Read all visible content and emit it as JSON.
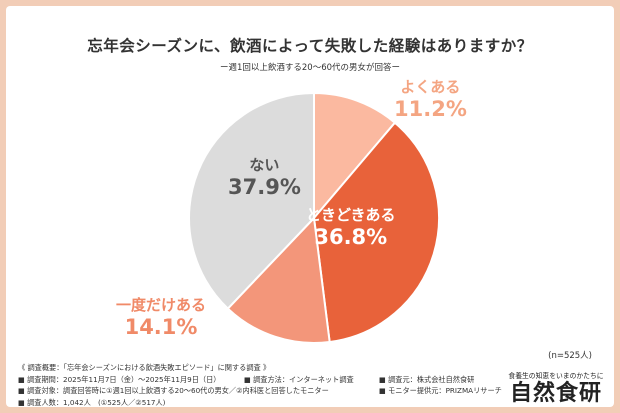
{
  "chart_data": {
    "type": "pie",
    "title": "忘年会シーズンに、飲酒によって失敗した経験はありますか？",
    "subtitle": "ー週1回以上飲酒する20～60代の男女が回答ー",
    "slices": [
      {
        "label": "よくある",
        "value": 11.2,
        "value_text": "11.2%",
        "color": "#fbb9a0",
        "text_color": "#f4a582"
      },
      {
        "label": "ときどきある",
        "value": 36.8,
        "value_text": "36.8%",
        "color": "#e8623a",
        "text_color": "#ffffff"
      },
      {
        "label": "一度だけある",
        "value": 14.1,
        "value_text": "14.1%",
        "color": "#f3967a",
        "text_color": "#f08a68"
      },
      {
        "label": "ない",
        "value": 37.9,
        "value_text": "37.9%",
        "color": "#dcdcdc",
        "text_color": "#555555"
      }
    ],
    "n_note": "(n=525人)"
  },
  "notes": {
    "line1": "《 調査概要：「忘年会シーズンにおける飲酒失敗エピソード」に関する調査 》",
    "period": "■ 調査期間：2025年11月7日（金）～2025年11月9日（日）",
    "method": "■ 調査方法：インターネット調査",
    "organizer": "■ 調査元：株式会社自然食研",
    "target": "■ 調査対象：調査回答時に①週1回以上飲酒する20～60代の男女／②内科医と回答したモニター",
    "provider": "■ モニター提供元：PRIZMAリサーチ",
    "count": "■ 調査人数：1,042人　(①525人／②517人)"
  },
  "brand": {
    "tagline": "食養生の知恵をいまのかたちに",
    "name": "自然食研"
  },
  "colors": {
    "background": "#f2cdb7",
    "card": "#ffffff"
  }
}
